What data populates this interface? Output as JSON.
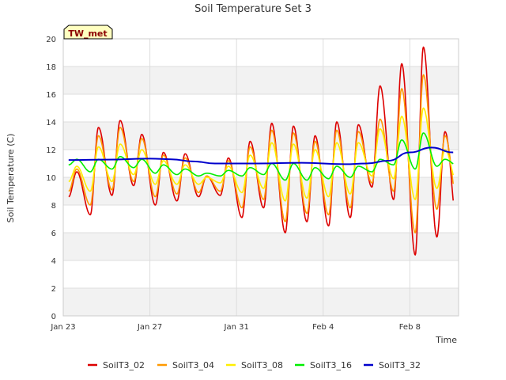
{
  "chart_data": {
    "type": "line",
    "title": "Soil Temperature Set 3",
    "xlabel": "Time",
    "ylabel": "Soil Temperature (C)",
    "badge": "TW_met",
    "xlim": [
      "2023-01-23",
      "2023-02-10T06:00"
    ],
    "ylim": [
      0,
      20
    ],
    "yticks": [
      0,
      2,
      4,
      6,
      8,
      10,
      12,
      14,
      16,
      18,
      20
    ],
    "xticks": [
      {
        "date": "2023-01-23",
        "label": "Jan 23"
      },
      {
        "date": "2023-01-27",
        "label": "Jan 27"
      },
      {
        "date": "2023-01-31",
        "label": "Jan 31"
      },
      {
        "date": "2023-02-04",
        "label": "Feb 4"
      },
      {
        "date": "2023-02-08",
        "label": "Feb 8"
      }
    ],
    "grid": true,
    "legend_position": "bottom",
    "daily_peaks": [
      {
        "date": "2023-01-23",
        "peak_hour": 15
      },
      {
        "date": "2023-01-24",
        "peak_hour": 15
      },
      {
        "date": "2023-01-25",
        "peak_hour": 15
      },
      {
        "date": "2023-01-26",
        "peak_hour": 15
      },
      {
        "date": "2023-01-27",
        "peak_hour": 15
      },
      {
        "date": "2023-01-28",
        "peak_hour": 15
      },
      {
        "date": "2023-01-29",
        "peak_hour": 15
      },
      {
        "date": "2023-01-30",
        "peak_hour": 15
      },
      {
        "date": "2023-01-31",
        "peak_hour": 15
      },
      {
        "date": "2023-02-01",
        "peak_hour": 15
      },
      {
        "date": "2023-02-02",
        "peak_hour": 15
      },
      {
        "date": "2023-02-03",
        "peak_hour": 15
      },
      {
        "date": "2023-02-04",
        "peak_hour": 15
      },
      {
        "date": "2023-02-05",
        "peak_hour": 15
      },
      {
        "date": "2023-02-06",
        "peak_hour": 15
      },
      {
        "date": "2023-02-07",
        "peak_hour": 15
      },
      {
        "date": "2023-02-08",
        "peak_hour": 15
      },
      {
        "date": "2023-02-09",
        "peak_hour": 15
      }
    ],
    "series": [
      {
        "name": "SoilT3_02",
        "color": "#dd0000",
        "x": [
          "2023-01-23T06:00",
          "2023-02-10T00:00"
        ],
        "daily_max": [
          10.4,
          13.6,
          14.1,
          13.1,
          11.8,
          11.7,
          10.1,
          11.4,
          12.6,
          13.9,
          13.7,
          13.0,
          14.0,
          13.8,
          16.6,
          18.2,
          19.4,
          13.3
        ],
        "daily_min": [
          8.6,
          7.3,
          8.7,
          9.4,
          8.0,
          8.3,
          8.6,
          8.7,
          7.1,
          7.8,
          6.0,
          6.8,
          6.5,
          7.1,
          9.3,
          8.4,
          4.4,
          5.7
        ]
      },
      {
        "name": "SoilT3_04",
        "color": "#ff9900",
        "x": [
          "2023-01-23T06:00",
          "2023-02-10T00:00"
        ],
        "daily_max": [
          10.6,
          13.0,
          13.6,
          12.8,
          11.6,
          11.4,
          10.1,
          11.2,
          12.2,
          13.4,
          13.2,
          12.6,
          13.4,
          13.3,
          14.2,
          16.4,
          17.4,
          13.0
        ],
        "daily_min": [
          9.0,
          8.0,
          9.1,
          9.7,
          8.6,
          8.8,
          8.9,
          9.0,
          7.8,
          8.4,
          6.8,
          7.4,
          7.3,
          7.8,
          9.6,
          9.0,
          6.0,
          7.7
        ]
      },
      {
        "name": "SoilT3_08",
        "color": "#ffee00",
        "x": [
          "2023-01-23T06:00",
          "2023-02-10T00:00"
        ],
        "daily_max": [
          10.8,
          12.2,
          12.4,
          12.0,
          11.2,
          10.9,
          10.0,
          10.8,
          11.6,
          12.5,
          12.4,
          12.0,
          12.5,
          12.5,
          13.5,
          14.4,
          15.0,
          12.0
        ],
        "daily_min": [
          9.7,
          9.0,
          9.7,
          10.2,
          9.5,
          9.5,
          9.5,
          9.6,
          8.9,
          9.2,
          8.3,
          8.5,
          8.6,
          8.8,
          10.1,
          9.9,
          8.4,
          9.2
        ]
      },
      {
        "name": "SoilT3_16",
        "color": "#00ee00",
        "x": [
          "2023-01-23T06:00",
          "2023-02-10T00:00"
        ],
        "daily_max": [
          11.3,
          11.3,
          11.5,
          11.3,
          10.9,
          10.6,
          10.3,
          10.5,
          10.7,
          11.0,
          11.0,
          10.7,
          10.8,
          10.8,
          11.3,
          12.7,
          13.2,
          11.3
        ],
        "daily_min": [
          10.9,
          10.4,
          10.6,
          10.7,
          10.3,
          10.2,
          10.1,
          10.1,
          10.1,
          10.2,
          9.8,
          9.8,
          9.9,
          10.0,
          10.4,
          10.9,
          10.6,
          10.8
        ]
      }
    ],
    "series_smooth": {
      "name": "SoilT3_32",
      "color": "#0000cc",
      "x": [
        "2023-01-23T06:00",
        "2023-01-25",
        "2023-01-27",
        "2023-01-28",
        "2023-01-29",
        "2023-01-30",
        "2023-02-01",
        "2023-02-03",
        "2023-02-05",
        "2023-02-06",
        "2023-02-07",
        "2023-02-08",
        "2023-02-09",
        "2023-02-10T00:00"
      ],
      "y": [
        11.25,
        11.28,
        11.35,
        11.3,
        11.15,
        11.0,
        11.0,
        11.05,
        10.95,
        11.0,
        11.2,
        11.8,
        12.15,
        11.8
      ]
    }
  }
}
